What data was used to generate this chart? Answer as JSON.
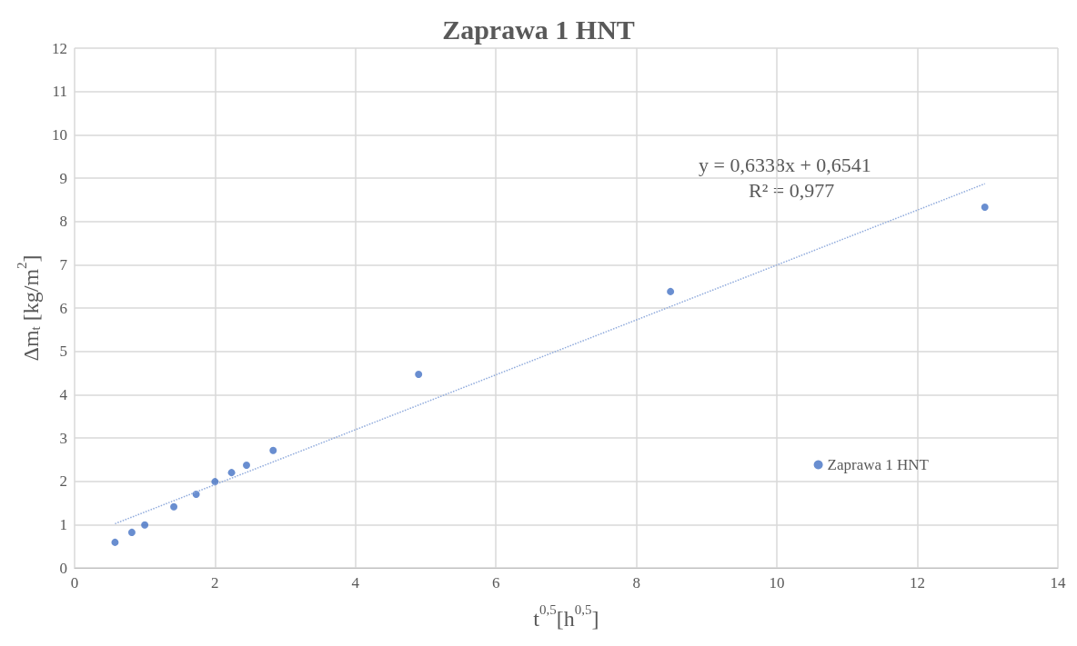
{
  "chart_data": {
    "type": "scatter",
    "title": "Zaprawa 1 HNT",
    "xlabel": "t$^{0,5}$[h$^{0,5}$]",
    "ylabel": "Δm$_{t}$ [kg/m$^{2}$]",
    "annotations": [
      "y = 0,6338x + 0,6541",
      "R² = 0,977"
    ],
    "xlim": [
      0,
      14
    ],
    "xticks": [
      0,
      2,
      4,
      6,
      8,
      10,
      12,
      14
    ],
    "ylim": [
      0,
      12
    ],
    "yticks": [
      0,
      1,
      2,
      3,
      4,
      5,
      6,
      7,
      8,
      9,
      10,
      11,
      12
    ],
    "grid": true,
    "legend": "right",
    "marker": "circle",
    "series": [
      {
        "name": "Zaprawa 1 HNT",
        "color": "#4472c4",
        "x": [
          0.577,
          0.816,
          1,
          1.414,
          1.732,
          2,
          2.236,
          2.449,
          2.828,
          4.899,
          8.485,
          12.96
        ],
        "values": [
          0.59,
          0.82,
          0.99,
          1.41,
          1.7,
          1.99,
          2.2,
          2.37,
          2.71,
          4.47,
          6.38,
          8.33
        ]
      },
      {
        "type": "line",
        "color": "#8faadc",
        "line_style": "dotted",
        "marker": "none",
        "x": [
          0.577,
          12.96
        ],
        "values": [
          1.02,
          8.87
        ]
      }
    ]
  }
}
